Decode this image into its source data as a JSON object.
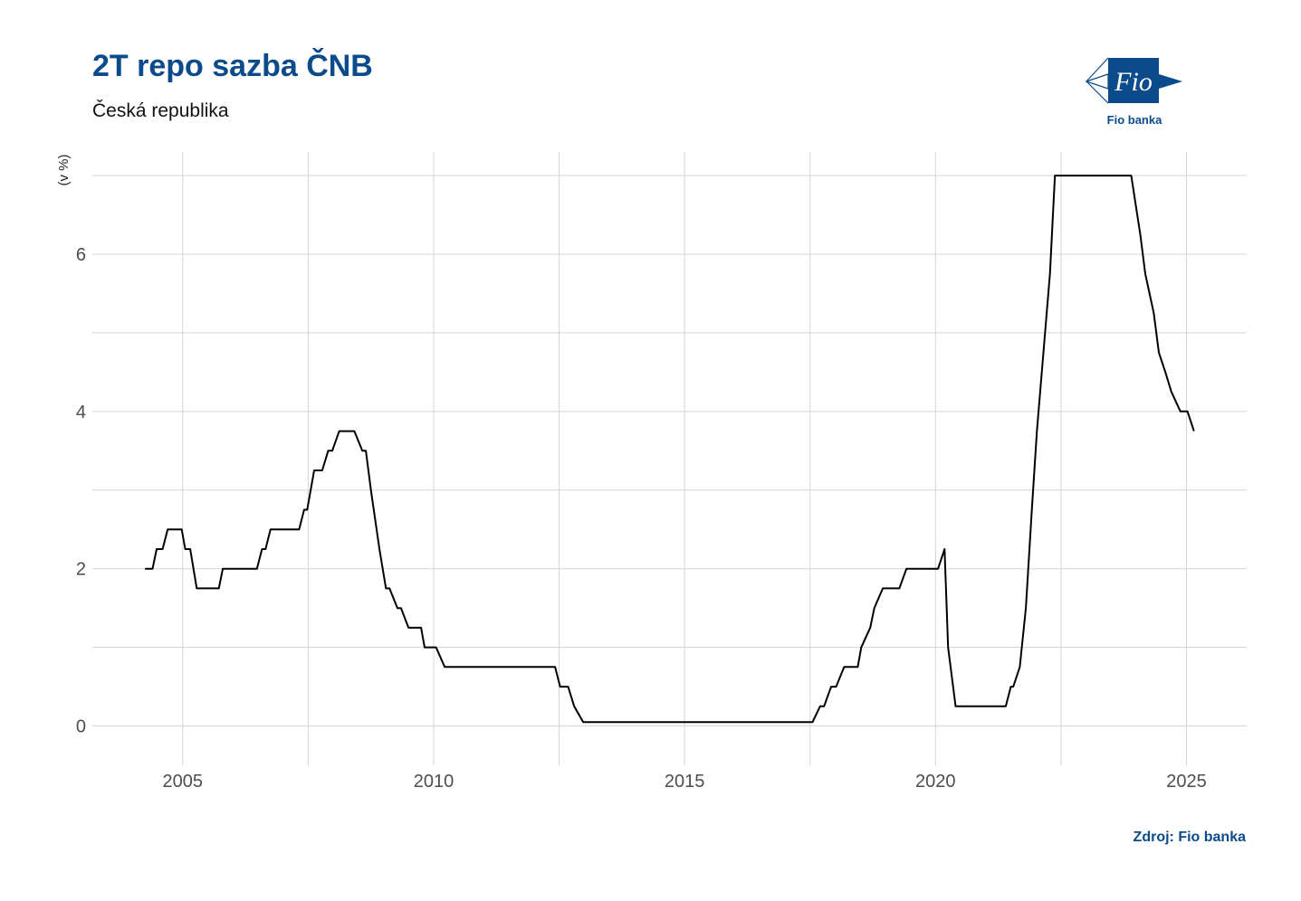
{
  "title": "2T repo sazba ČNB",
  "subtitle": "Česká republika",
  "source": "Zdroj: Fio banka",
  "logo": {
    "mark_text": "Fio",
    "caption": "Fio banka",
    "color": "#0b4a8b"
  },
  "chart_data": {
    "type": "line",
    "title": "2T repo sazba ČNB",
    "subtitle": "Česká republika",
    "ylabel": "(v %)",
    "xlabel": "",
    "xlim": [
      2003.2,
      2026.2
    ],
    "ylim": [
      -0.5,
      7.3
    ],
    "x_ticks": [
      2005,
      2010,
      2015,
      2020,
      2025
    ],
    "y_ticks": [
      0,
      2,
      4,
      6
    ],
    "grid": true,
    "line_color": "#000000",
    "series": [
      {
        "name": "",
        "points": [
          [
            2004.25,
            2.0
          ],
          [
            2004.4,
            2.0
          ],
          [
            2004.48,
            2.25
          ],
          [
            2004.6,
            2.25
          ],
          [
            2004.7,
            2.5
          ],
          [
            2004.98,
            2.5
          ],
          [
            2005.05,
            2.25
          ],
          [
            2005.15,
            2.25
          ],
          [
            2005.28,
            1.75
          ],
          [
            2005.72,
            1.75
          ],
          [
            2005.8,
            2.0
          ],
          [
            2006.48,
            2.0
          ],
          [
            2006.58,
            2.25
          ],
          [
            2006.65,
            2.25
          ],
          [
            2006.75,
            2.5
          ],
          [
            2007.32,
            2.5
          ],
          [
            2007.42,
            2.75
          ],
          [
            2007.48,
            2.75
          ],
          [
            2007.62,
            3.25
          ],
          [
            2007.78,
            3.25
          ],
          [
            2007.9,
            3.5
          ],
          [
            2007.98,
            3.5
          ],
          [
            2008.12,
            3.75
          ],
          [
            2008.42,
            3.75
          ],
          [
            2008.58,
            3.5
          ],
          [
            2008.65,
            3.5
          ],
          [
            2008.75,
            3.0
          ],
          [
            2008.92,
            2.25
          ],
          [
            2009.05,
            1.75
          ],
          [
            2009.12,
            1.75
          ],
          [
            2009.28,
            1.5
          ],
          [
            2009.35,
            1.5
          ],
          [
            2009.5,
            1.25
          ],
          [
            2009.75,
            1.25
          ],
          [
            2009.82,
            1.0
          ],
          [
            2010.05,
            1.0
          ],
          [
            2010.22,
            0.75
          ],
          [
            2012.42,
            0.75
          ],
          [
            2012.52,
            0.5
          ],
          [
            2012.68,
            0.5
          ],
          [
            2012.8,
            0.25
          ],
          [
            2012.98,
            0.05
          ],
          [
            2017.55,
            0.05
          ],
          [
            2017.7,
            0.25
          ],
          [
            2017.78,
            0.25
          ],
          [
            2017.92,
            0.5
          ],
          [
            2018.02,
            0.5
          ],
          [
            2018.18,
            0.75
          ],
          [
            2018.45,
            0.75
          ],
          [
            2018.52,
            1.0
          ],
          [
            2018.7,
            1.25
          ],
          [
            2018.78,
            1.5
          ],
          [
            2018.95,
            1.75
          ],
          [
            2019.28,
            1.75
          ],
          [
            2019.42,
            2.0
          ],
          [
            2020.05,
            2.0
          ],
          [
            2020.18,
            2.25
          ],
          [
            2020.25,
            1.0
          ],
          [
            2020.4,
            0.25
          ],
          [
            2021.4,
            0.25
          ],
          [
            2021.5,
            0.5
          ],
          [
            2021.55,
            0.5
          ],
          [
            2021.68,
            0.75
          ],
          [
            2021.8,
            1.5
          ],
          [
            2021.92,
            2.75
          ],
          [
            2022.02,
            3.75
          ],
          [
            2022.28,
            5.75
          ],
          [
            2022.38,
            7.0
          ],
          [
            2023.9,
            7.0
          ],
          [
            2024.08,
            6.25
          ],
          [
            2024.18,
            5.75
          ],
          [
            2024.35,
            5.25
          ],
          [
            2024.45,
            4.75
          ],
          [
            2024.58,
            4.5
          ],
          [
            2024.7,
            4.25
          ],
          [
            2024.88,
            4.0
          ],
          [
            2025.02,
            4.0
          ],
          [
            2025.15,
            3.75
          ]
        ]
      }
    ]
  }
}
